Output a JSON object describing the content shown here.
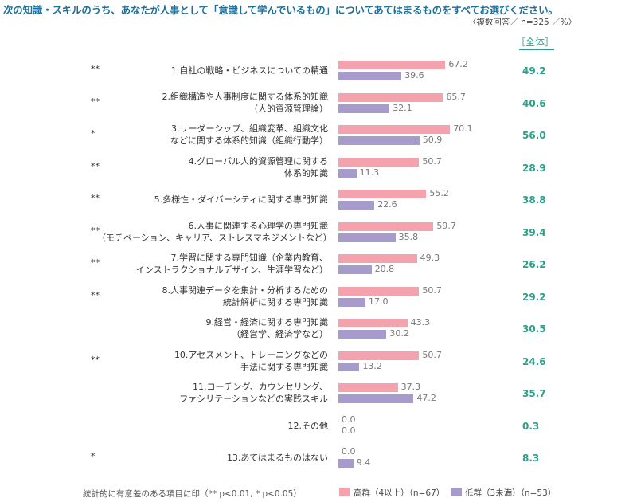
{
  "title": "次の知識・スキルのうち、あなたが人事として「意識して学んでいるもの」についてあてはまるものをすべてお選びください。",
  "note": "〈複数回答／ n=325 ／%〉",
  "overall_header": "［全体］",
  "footnote": "統計的に有意差のある項目に印（** p<0.01, * p<0.05）",
  "colors": {
    "high": "#f4a3ae",
    "low": "#a79bcc",
    "total": "#2e9e8a",
    "title": "#1f6f99"
  },
  "chart_data": {
    "type": "bar",
    "orientation": "horizontal",
    "xlim": [
      0,
      100
    ],
    "categories": [
      "1.自社の戦略・ビジネスについての精通",
      "2.組織構造や人事制度に関する体系的知識\n（人的資源管理論）",
      "3.リーダーシップ、組織変革、組織文化\nなどに関する体系的知識（組織行動学）",
      "4.グローバル人的資源管理に関する\n体系的知識",
      "5.多様性・ダイバーシティに関する専門知識",
      "6.人事に関連する心理学の専門知識\n（モチベーション、キャリア、ストレスマネジメントなど）",
      "7.学習に関する専門知識（企業内教育、\nインストラクショナルデザイン、生涯学習など）",
      "8.人事関連データを集計・分析するための\n統計解析に関する専門知識",
      "9.経営・経済に関する専門知識\n（経営学、経済学など）",
      "10.アセスメント、トレーニングなどの\n手法に関する専門知識",
      "11.コーチング、カウンセリング、\nファシリテーションなどの実践スキル",
      "12.その他",
      "13.あてはまるものはない"
    ],
    "significance": [
      "**",
      "**",
      "*",
      "**",
      "**",
      "**",
      "**",
      "**",
      "",
      "**",
      "",
      "",
      "*"
    ],
    "series": [
      {
        "name": "高群（4以上）（n=67）",
        "values": [
          67.2,
          65.7,
          70.1,
          50.7,
          55.2,
          59.7,
          49.3,
          50.7,
          43.3,
          50.7,
          37.3,
          0.0,
          0.0
        ]
      },
      {
        "name": "低群（3未満）（n=53）",
        "values": [
          39.6,
          32.1,
          50.9,
          11.3,
          22.6,
          35.8,
          20.8,
          17.0,
          30.2,
          13.2,
          47.2,
          0.0,
          9.4
        ]
      }
    ],
    "overall": [
      49.2,
      40.6,
      56.0,
      28.9,
      38.8,
      39.4,
      26.2,
      29.2,
      30.5,
      24.6,
      35.7,
      0.3,
      8.3
    ]
  }
}
